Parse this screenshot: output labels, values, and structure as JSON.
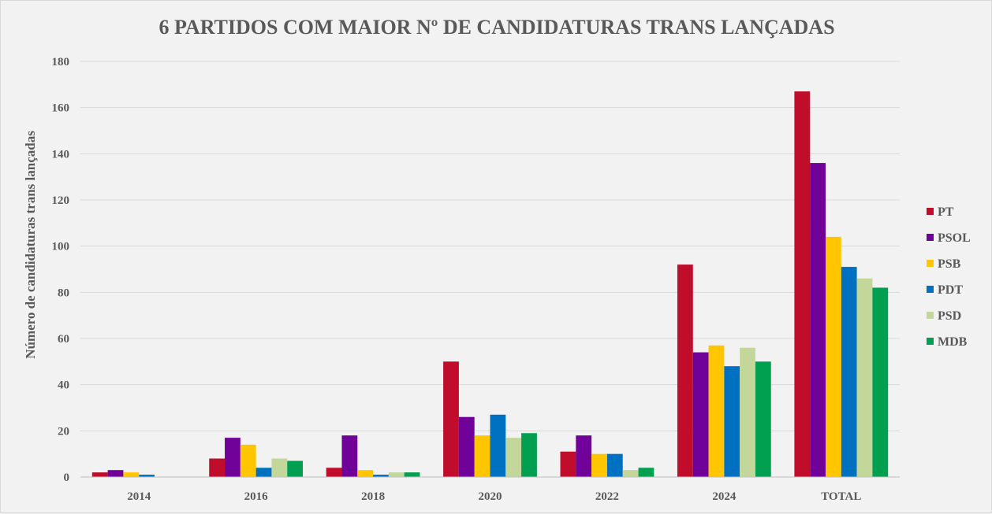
{
  "chart_data": {
    "type": "bar",
    "title": "6 PARTIDOS  COM MAIOR Nº DE CANDIDATURAS  TRANS LANÇADAS",
    "xlabel": "",
    "ylabel": "Número de candidaturas trans lançadas",
    "ylim": [
      0,
      180
    ],
    "yticks": [
      "0",
      "20",
      "40",
      "60",
      "80",
      "100",
      "120",
      "140",
      "160",
      "180"
    ],
    "grid": true,
    "legend_position": "right",
    "categories": [
      "2014",
      "2016",
      "2018",
      "2020",
      "2022",
      "2024",
      "TOTAL"
    ],
    "series": [
      {
        "name": "PT",
        "color": "#c00d2c",
        "values": [
          2,
          8,
          4,
          50,
          11,
          92,
          167
        ]
      },
      {
        "name": "PSOL",
        "color": "#70029a",
        "values": [
          3,
          17,
          18,
          26,
          18,
          54,
          136
        ]
      },
      {
        "name": "PSB",
        "color": "#ffc600",
        "values": [
          2,
          14,
          3,
          18,
          10,
          57,
          104
        ]
      },
      {
        "name": "PDT",
        "color": "#0070c0",
        "values": [
          1,
          4,
          1,
          27,
          10,
          48,
          91
        ]
      },
      {
        "name": "PSD",
        "color": "#c4d79b",
        "values": [
          0,
          8,
          2,
          17,
          3,
          56,
          86
        ]
      },
      {
        "name": "MDB",
        "color": "#00a050",
        "values": [
          0,
          7,
          2,
          19,
          4,
          50,
          82
        ]
      }
    ]
  }
}
